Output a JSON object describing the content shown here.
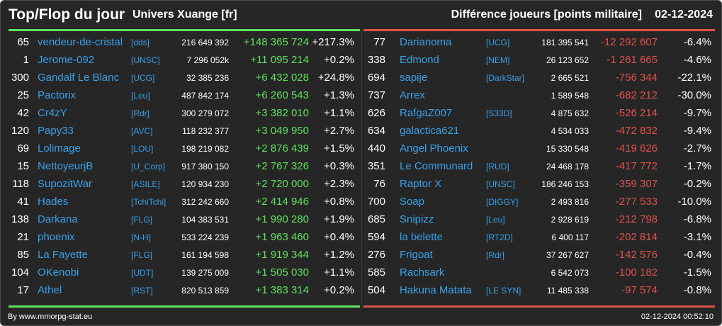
{
  "header": {
    "title": "Top/Flop du jour",
    "universe": "Univers Xuange [fr]",
    "metric": "Différence joueurs [points militaire]",
    "date": "02-12-2024"
  },
  "colors": {
    "gain": "#5fe05f",
    "loss": "#e0524a",
    "link": "#3aa0e8",
    "background": "#262626"
  },
  "top": [
    {
      "rank": "65",
      "name": "vendeur-de-cristal",
      "alliance": "[dds]",
      "points": "216 649 392",
      "diff": "+148 365 724",
      "pct": "+217.3%"
    },
    {
      "rank": "1",
      "name": "Jerome-092",
      "alliance": "[UNSC]",
      "points": "7 296 052k",
      "diff": "+11 095 214",
      "pct": "+0.2%"
    },
    {
      "rank": "300",
      "name": "Gandalf Le Blanc",
      "alliance": "[UCG]",
      "points": "32 385 236",
      "diff": "+6 432 028",
      "pct": "+24.8%"
    },
    {
      "rank": "25",
      "name": "Pactorix",
      "alliance": "[Leu]",
      "points": "487 842 174",
      "diff": "+6 260 543",
      "pct": "+1.3%"
    },
    {
      "rank": "42",
      "name": "Cr4zY",
      "alliance": "[Rdr]",
      "points": "300 279 072",
      "diff": "+3 382 010",
      "pct": "+1.1%"
    },
    {
      "rank": "120",
      "name": "Papy33",
      "alliance": "[AVC]",
      "points": "118 232 377",
      "diff": "+3 049 950",
      "pct": "+2.7%"
    },
    {
      "rank": "69",
      "name": "Lolimage",
      "alliance": "[LOU]",
      "points": "198 219 082",
      "diff": "+2 876 439",
      "pct": "+1.5%"
    },
    {
      "rank": "15",
      "name": "NettoyeurjB",
      "alliance": "[U_Corp]",
      "points": "917 380 150",
      "diff": "+2 767 326",
      "pct": "+0.3%"
    },
    {
      "rank": "118",
      "name": "SupozitWar",
      "alliance": "[ASILE]",
      "points": "120 934 230",
      "diff": "+2 720 000",
      "pct": "+2.3%"
    },
    {
      "rank": "41",
      "name": "Hades",
      "alliance": "[TchiTchi]",
      "points": "312 242 660",
      "diff": "+2 414 946",
      "pct": "+0.8%"
    },
    {
      "rank": "138",
      "name": "Darkana",
      "alliance": "[FLG]",
      "points": "104 383 531",
      "diff": "+1 990 280",
      "pct": "+1.9%"
    },
    {
      "rank": "21",
      "name": "phoenix",
      "alliance": "[N-H]",
      "points": "533 224 239",
      "diff": "+1 963 460",
      "pct": "+0.4%"
    },
    {
      "rank": "85",
      "name": "La Fayette",
      "alliance": "[FLG]",
      "points": "161 194 598",
      "diff": "+1 919 344",
      "pct": "+1.2%"
    },
    {
      "rank": "104",
      "name": "OKenobi",
      "alliance": "[UDT]",
      "points": "139 275 009",
      "diff": "+1 505 030",
      "pct": "+1.1%"
    },
    {
      "rank": "17",
      "name": "Athel",
      "alliance": "[RST]",
      "points": "820 513 859",
      "diff": "+1 383 314",
      "pct": "+0.2%"
    }
  ],
  "flop": [
    {
      "rank": "77",
      "name": "Darianoma",
      "alliance": "[UCG]",
      "points": "181 395 541",
      "diff": "-12 292 607",
      "pct": "-6.4%"
    },
    {
      "rank": "338",
      "name": "Edmond",
      "alliance": "[NEM]",
      "points": "26 123 652",
      "diff": "-1 261 665",
      "pct": "-4.6%"
    },
    {
      "rank": "694",
      "name": "sapije",
      "alliance": "[DarkStar]",
      "points": "2 665 521",
      "diff": "-756 344",
      "pct": "-22.1%"
    },
    {
      "rank": "737",
      "name": "Arrex",
      "alliance": "",
      "points": "1 589 548",
      "diff": "-682 212",
      "pct": "-30.0%"
    },
    {
      "rank": "626",
      "name": "RafgaZ007",
      "alliance": "[S33D]",
      "points": "4 875 632",
      "diff": "-526 214",
      "pct": "-9.7%"
    },
    {
      "rank": "634",
      "name": "galactica621",
      "alliance": "",
      "points": "4 534 033",
      "diff": "-472 832",
      "pct": "-9.4%"
    },
    {
      "rank": "440",
      "name": "Angel Phoenix",
      "alliance": "",
      "points": "15 330 548",
      "diff": "-419 626",
      "pct": "-2.7%"
    },
    {
      "rank": "351",
      "name": "Le Communard",
      "alliance": "[RUD]",
      "points": "24 468 178",
      "diff": "-417 772",
      "pct": "-1.7%"
    },
    {
      "rank": "76",
      "name": "Raptor X",
      "alliance": "[UNSC]",
      "points": "186 246 153",
      "diff": "-359 307",
      "pct": "-0.2%"
    },
    {
      "rank": "700",
      "name": "Soap",
      "alliance": "[DIGGY]",
      "points": "2 493 816",
      "diff": "-277 533",
      "pct": "-10.0%"
    },
    {
      "rank": "685",
      "name": "Snipizz",
      "alliance": "[Leu]",
      "points": "2 928 619",
      "diff": "-212 798",
      "pct": "-6.8%"
    },
    {
      "rank": "594",
      "name": "la belette",
      "alliance": "[RT2D]",
      "points": "6 400 117",
      "diff": "-202 814",
      "pct": "-3.1%"
    },
    {
      "rank": "276",
      "name": "Frigoat",
      "alliance": "[Rdr]",
      "points": "37 267 627",
      "diff": "-142 576",
      "pct": "-0.4%"
    },
    {
      "rank": "585",
      "name": "Rachsark",
      "alliance": "",
      "points": "6 542 073",
      "diff": "-100 182",
      "pct": "-1.5%"
    },
    {
      "rank": "504",
      "name": "Hakuna Matata",
      "alliance": "[LE SYN]",
      "points": "11 485 338",
      "diff": "-97 574",
      "pct": "-0.8%"
    }
  ],
  "footer": {
    "source": "By www.mmorpg-stat.eu",
    "timestamp": "02-12-2024 00:52:10"
  }
}
